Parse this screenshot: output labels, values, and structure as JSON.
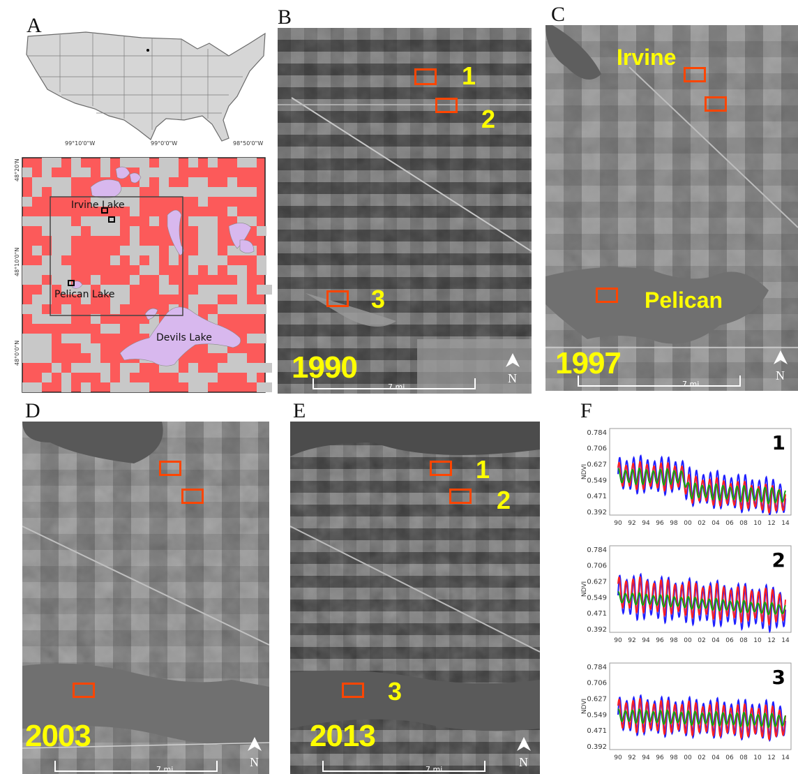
{
  "panels": {
    "A": {
      "label": "A"
    },
    "B": {
      "label": "B",
      "year": "1990",
      "scale": "7 mi",
      "sites": [
        "1",
        "2",
        "3"
      ]
    },
    "C": {
      "label": "C",
      "year": "1997",
      "scale": "7 mi",
      "lakes": [
        "Irvine",
        "Pelican"
      ]
    },
    "D": {
      "label": "D",
      "year": "2003",
      "scale": "7 mi"
    },
    "E": {
      "label": "E",
      "year": "2013",
      "scale": "7 mi",
      "sites": [
        "1",
        "2",
        "3"
      ]
    },
    "F": {
      "label": "F"
    }
  },
  "map": {
    "lon_ticks": [
      "99°10'0\"W",
      "99°0'0\"W",
      "98°50'0\"W"
    ],
    "lat_ticks": [
      "48°20'N",
      "48°10'0\"N",
      "48°0'0\"N"
    ],
    "lakes": [
      "Irvine Lake",
      "Pelican Lake",
      "Devils Lake"
    ],
    "colors": {
      "background": "#fc5a5a",
      "land_cells": "#c8c8c8",
      "lakes": "#d8b8ee"
    }
  },
  "north_label": "N",
  "chart_data": [
    {
      "type": "line",
      "panel": "1",
      "ylabel": "NDVI",
      "yticks": [
        "0.784",
        "0.706",
        "0.627",
        "0.549",
        "0.471",
        "0.392"
      ],
      "xticks": [
        "90",
        "92",
        "94",
        "96",
        "98",
        "00",
        "02",
        "04",
        "06",
        "08",
        "10",
        "12",
        "14"
      ],
      "ylim": [
        0.392,
        0.784
      ],
      "series": [
        {
          "color": "#1f1fff",
          "mean_segments": [
            [
              1990,
              0.58
            ],
            [
              1999.5,
              0.57
            ],
            [
              2000,
              0.52
            ],
            [
              2014,
              0.46
            ]
          ],
          "amp": 0.095
        },
        {
          "color": "#ff2020",
          "mean_segments": [
            [
              1990,
              0.575
            ],
            [
              1999.5,
              0.565
            ],
            [
              2000,
              0.51
            ],
            [
              2014,
              0.45
            ]
          ],
          "amp": 0.07
        },
        {
          "color": "#14a014",
          "mean_segments": [
            [
              1990,
              0.57
            ],
            [
              1999.5,
              0.565
            ],
            [
              2000,
              0.5
            ],
            [
              2014,
              0.47
            ]
          ],
          "amp": 0.04
        }
      ]
    },
    {
      "type": "line",
      "panel": "2",
      "ylabel": "NDVI",
      "yticks": [
        "0.784",
        "0.706",
        "0.627",
        "0.549",
        "0.471",
        "0.392"
      ],
      "xticks": [
        "90",
        "92",
        "94",
        "96",
        "98",
        "00",
        "02",
        "04",
        "06",
        "08",
        "10",
        "12",
        "14"
      ],
      "ylim": [
        0.392,
        0.784
      ],
      "series": [
        {
          "color": "#1f1fff",
          "mean_segments": [
            [
              1990,
              0.56
            ],
            [
              2014,
              0.49
            ]
          ],
          "amp": 0.115
        },
        {
          "color": "#ff2020",
          "mean_segments": [
            [
              1990,
              0.57
            ],
            [
              2014,
              0.5
            ]
          ],
          "amp": 0.09
        },
        {
          "color": "#14a014",
          "mean_segments": [
            [
              1990,
              0.55
            ],
            [
              2014,
              0.49
            ]
          ],
          "amp": 0.03
        }
      ]
    },
    {
      "type": "line",
      "panel": "3",
      "ylabel": "NDVI",
      "yticks": [
        "0.784",
        "0.706",
        "0.627",
        "0.549",
        "0.471",
        "0.392"
      ],
      "xticks": [
        "90",
        "92",
        "94",
        "96",
        "98",
        "00",
        "02",
        "04",
        "06",
        "08",
        "10",
        "12",
        "14"
      ],
      "ylim": [
        0.392,
        0.784
      ],
      "series": [
        {
          "color": "#1f1fff",
          "mean_segments": [
            [
              1990,
              0.55
            ],
            [
              2014,
              0.52
            ]
          ],
          "amp": 0.1
        },
        {
          "color": "#ff2020",
          "mean_segments": [
            [
              1990,
              0.55
            ],
            [
              2014,
              0.51
            ]
          ],
          "amp": 0.085
        },
        {
          "color": "#14a014",
          "mean_segments": [
            [
              1990,
              0.545
            ],
            [
              2014,
              0.52
            ]
          ],
          "amp": 0.035
        }
      ]
    }
  ]
}
